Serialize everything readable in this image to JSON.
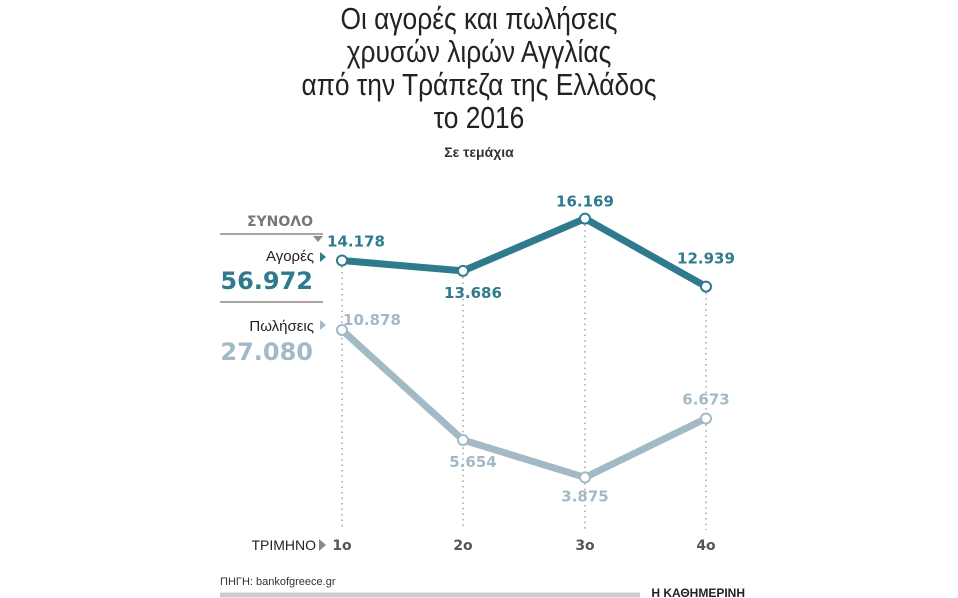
{
  "chart_data": {
    "type": "line",
    "title": "Οι αγορές και πωλήσεις χρυσών λιρών Αγγλίας από την Τράπεζα της Ελλάδος το 2016",
    "title_lines": [
      "Οι αγορές και πωλήσεις",
      "χρυσών λιρών Αγγλίας",
      "από την Τράπεζα της Ελλάδος",
      "το 2016"
    ],
    "subtitle": "Σε τεμάχια",
    "xlabel": "ΤΡΙΜΗΝΟ",
    "categories": [
      "1ο",
      "2ο",
      "3ο",
      "4ο"
    ],
    "total_label": "ΣΥΝΟΛΟ",
    "series": [
      {
        "name": "Αγορές",
        "total": "56.972",
        "values": [
          14178,
          13686,
          16169,
          12939
        ],
        "labels": [
          "14.178",
          "13.686",
          "16.169",
          "12.939"
        ],
        "color": "#2f7b8d"
      },
      {
        "name": "Πωλήσεις",
        "total": "27.080",
        "values": [
          10878,
          5654,
          3875,
          6673
        ],
        "labels": [
          "10.878",
          "5.654",
          "3.875",
          "6.673"
        ],
        "color": "#a3bac6"
      }
    ]
  },
  "footer": {
    "source": "ΠΗΓΗ: bankofgreece.gr",
    "brand": "Η ΚΑΘΗΜΕΡΙΝΗ"
  }
}
